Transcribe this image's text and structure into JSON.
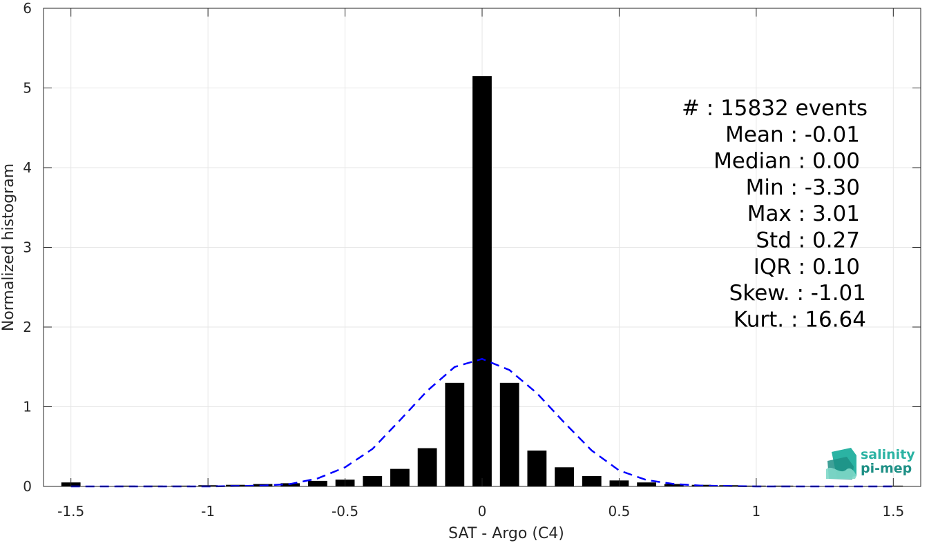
{
  "chart_data": {
    "type": "bar",
    "xlabel": "SAT - Argo (C4)",
    "ylabel": "Normalized histogram",
    "xlim": [
      -1.6,
      1.6
    ],
    "ylim": [
      0,
      6
    ],
    "xticks": [
      -1.5,
      -1,
      -0.5,
      0,
      0.5,
      1,
      1.5
    ],
    "xtick_labels": [
      "-1.5",
      "-1",
      "-0.5",
      "0",
      "0.5",
      "1",
      "1.5"
    ],
    "yticks": [
      0,
      1,
      2,
      3,
      4,
      5,
      6
    ],
    "ytick_labels": [
      "0",
      "1",
      "2",
      "3",
      "4",
      "5",
      "6"
    ],
    "grid": true,
    "bar_width": 0.07,
    "series": [
      {
        "kind": "bar",
        "color": "#000000",
        "x": [
          -1.5,
          -1.4,
          -1.3,
          -1.2,
          -1.1,
          -1.0,
          -0.9,
          -0.8,
          -0.7,
          -0.6,
          -0.5,
          -0.4,
          -0.3,
          -0.2,
          -0.1,
          0.0,
          0.1,
          0.2,
          0.3,
          0.4,
          0.5,
          0.6,
          0.7,
          0.8,
          0.9,
          1.0,
          1.1,
          1.2,
          1.3,
          1.4,
          1.5
        ],
        "values": [
          0.05,
          0.005,
          0.01,
          0.01,
          0.01,
          0.015,
          0.02,
          0.03,
          0.04,
          0.07,
          0.085,
          0.13,
          0.22,
          0.48,
          1.3,
          5.15,
          1.3,
          0.45,
          0.24,
          0.13,
          0.075,
          0.05,
          0.03,
          0.02,
          0.015,
          0.01,
          0.01,
          0.005,
          0.005,
          0.005,
          0.01
        ]
      },
      {
        "kind": "line",
        "style": "dashed",
        "color": "#0000ff",
        "x": [
          -1.5,
          -1.4,
          -1.3,
          -1.2,
          -1.1,
          -1.0,
          -0.9,
          -0.8,
          -0.7,
          -0.6,
          -0.5,
          -0.4,
          -0.3,
          -0.2,
          -0.1,
          0.0,
          0.1,
          0.2,
          0.3,
          0.4,
          0.5,
          0.6,
          0.7,
          0.8,
          0.9,
          1.0,
          1.1,
          1.2,
          1.3,
          1.4,
          1.5
        ],
        "values": [
          0.0,
          0.0,
          0.0,
          0.0,
          0.0,
          0.0,
          0.005,
          0.01,
          0.03,
          0.1,
          0.24,
          0.47,
          0.83,
          1.2,
          1.5,
          1.6,
          1.46,
          1.17,
          0.8,
          0.45,
          0.2,
          0.08,
          0.03,
          0.01,
          0.005,
          0.0,
          0.0,
          0.0,
          0.0,
          0.0,
          0.0
        ]
      }
    ],
    "annotations": [
      "#  : 15832 events",
      "Mean : -0.01",
      "Median : 0.00",
      "Min : -3.30",
      "Max : 3.01",
      "Std : 0.27",
      "IQR : 0.10",
      "Skew. : -1.01",
      "Kurt. : 16.64"
    ]
  },
  "logo": {
    "line1": "salinity",
    "line2": "pi-mep",
    "colors": [
      "#2bb3a3",
      "#1d8f85",
      "#7fd8c9"
    ]
  },
  "colors": {
    "bars": "#000000",
    "fit": "#0000ff",
    "grid": "#e6e6e6",
    "axes": "#262626"
  }
}
